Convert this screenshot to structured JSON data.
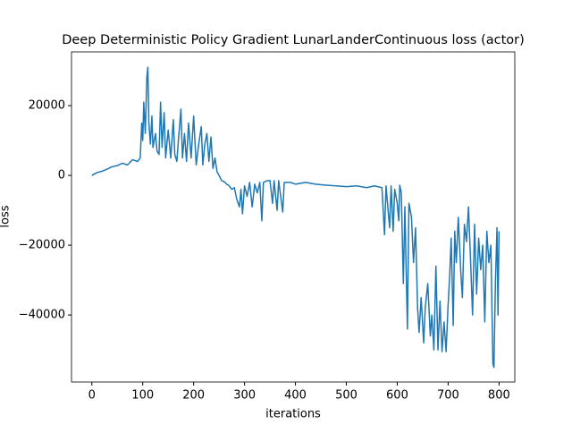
{
  "chart_data": {
    "type": "line",
    "title": "Deep Deterministic Policy Gradient LunarLanderContinuous loss (actor)",
    "x_label": "iterations",
    "y_label": "loss",
    "x": [
      0,
      10,
      20,
      30,
      40,
      50,
      60,
      70,
      80,
      90,
      95,
      98,
      100,
      102,
      105,
      108,
      110,
      112,
      115,
      118,
      120,
      125,
      128,
      132,
      135,
      138,
      142,
      145,
      150,
      155,
      160,
      163,
      167,
      170,
      175,
      178,
      182,
      186,
      190,
      195,
      200,
      205,
      210,
      215,
      218,
      222,
      226,
      230,
      234,
      238,
      242,
      246,
      250,
      255,
      260,
      265,
      270,
      275,
      280,
      285,
      290,
      293,
      296,
      300,
      305,
      310,
      315,
      320,
      325,
      330,
      334,
      337,
      345,
      350,
      355,
      358,
      364,
      367,
      375,
      378,
      390,
      400,
      420,
      440,
      460,
      480,
      500,
      520,
      540,
      555,
      570,
      575,
      578,
      585,
      588,
      592,
      595,
      600,
      603,
      605,
      608,
      612,
      615,
      620,
      623,
      628,
      632,
      636,
      640,
      643,
      647,
      652,
      655,
      660,
      665,
      668,
      672,
      676,
      680,
      684,
      688,
      692,
      696,
      700,
      703,
      706,
      710,
      713,
      716,
      720,
      725,
      728,
      732,
      736,
      740,
      744,
      748,
      752,
      756,
      760,
      764,
      768,
      772,
      776,
      780,
      784,
      788,
      790,
      793,
      796,
      798,
      800
    ],
    "series": [
      {
        "name": "loss",
        "color": "#1f77b4",
        "values": [
          0,
          800,
          1200,
          1800,
          2500,
          2800,
          3500,
          3000,
          4500,
          4000,
          5000,
          15000,
          10000,
          21000,
          12000,
          28000,
          31000,
          15000,
          9000,
          17000,
          8000,
          12000,
          7000,
          6000,
          21000,
          8000,
          18000,
          5000,
          13000,
          5000,
          16000,
          6000,
          4000,
          10000,
          19000,
          5000,
          12000,
          4000,
          15000,
          5000,
          17000,
          3000,
          9000,
          14000,
          3000,
          9000,
          12000,
          4000,
          11000,
          2000,
          5000,
          1000,
          0,
          -1500,
          -1800,
          -2500,
          -3000,
          -4000,
          -3500,
          -7000,
          -9000,
          -4000,
          -11000,
          -3000,
          -6000,
          -2000,
          -9000,
          -2500,
          -5000,
          -2000,
          -13000,
          -2000,
          -1500,
          -1500,
          -8000,
          -1500,
          -10000,
          -1500,
          -10500,
          -2000,
          -2000,
          -2500,
          -2000,
          -2500,
          -2800,
          -3000,
          -3200,
          -3000,
          -3500,
          -3000,
          -3500,
          -17000,
          -3000,
          -15000,
          -3000,
          -16000,
          -4000,
          -8000,
          -13000,
          -2800,
          -5000,
          -31000,
          -9000,
          -44000,
          -8000,
          -12000,
          -25000,
          -15000,
          -38000,
          -45000,
          -35000,
          -48000,
          -38000,
          -31000,
          -46000,
          -40000,
          -50000,
          -26000,
          -50000,
          -36000,
          -50500,
          -42000,
          -50500,
          -37000,
          -29000,
          -18000,
          -43000,
          -16000,
          -25000,
          -12000,
          -28000,
          -35000,
          -14000,
          -19000,
          -9000,
          -24000,
          -40000,
          -14000,
          -34000,
          -18000,
          -27000,
          -20000,
          -42000,
          -16000,
          -25000,
          -20000,
          -54000,
          -55000,
          -30000,
          -15000,
          -40000,
          -16000
        ]
      }
    ],
    "xlim": [
      -40,
      831
    ],
    "ylim": [
      -59200,
      35400
    ],
    "xticks": [
      0,
      100,
      200,
      300,
      400,
      500,
      600,
      700,
      800
    ],
    "yticks": [
      {
        "value": -40000,
        "label": "−40000"
      },
      {
        "value": -20000,
        "label": "−20000"
      },
      0,
      20000
    ]
  }
}
